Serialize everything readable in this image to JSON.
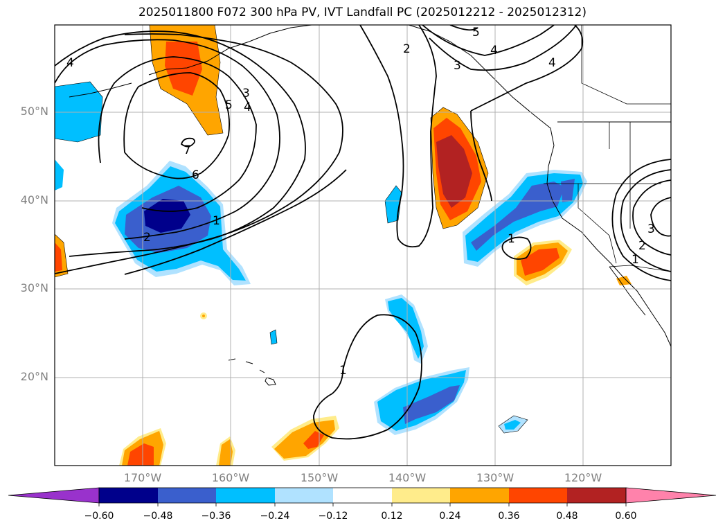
{
  "title": "2025011800 F072 300 hPa PV, IVT Landfall PC (2025012212 - 2025012312)",
  "lat_labels": [
    "50°N",
    "40°N",
    "30°N",
    "20°N"
  ],
  "lon_labels": [
    "170°W",
    "160°W",
    "150°W",
    "140°W",
    "130°W",
    "120°W"
  ],
  "colorbar": {
    "ticks": [
      "−0.60",
      "−0.48",
      "−0.36",
      "−0.24",
      "−0.12",
      "0.12",
      "0.24",
      "0.36",
      "0.48",
      "0.60"
    ],
    "colors": [
      "#9932cc",
      "#00008b",
      "#3a5fcd",
      "#00bfff",
      "#b0e2ff",
      "#ffffff",
      "#ffec8b",
      "#ffa500",
      "#ff4500",
      "#b22222",
      "#ff82ab"
    ]
  },
  "contour_labels": [
    "4",
    "3",
    "5",
    "4",
    "7",
    "6",
    "2",
    "1",
    "2",
    "5",
    "4",
    "3",
    "4",
    "1",
    "1",
    "2",
    "3",
    "1"
  ],
  "fill_colors": {
    "neg_light": "#b0e2ff",
    "neg1": "#00bfff",
    "neg2": "#3a5fcd",
    "neg3": "#00008b",
    "pos_light": "#ffec8b",
    "pos1": "#ffa500",
    "pos2": "#ff4500",
    "pos3": "#b22222"
  }
}
